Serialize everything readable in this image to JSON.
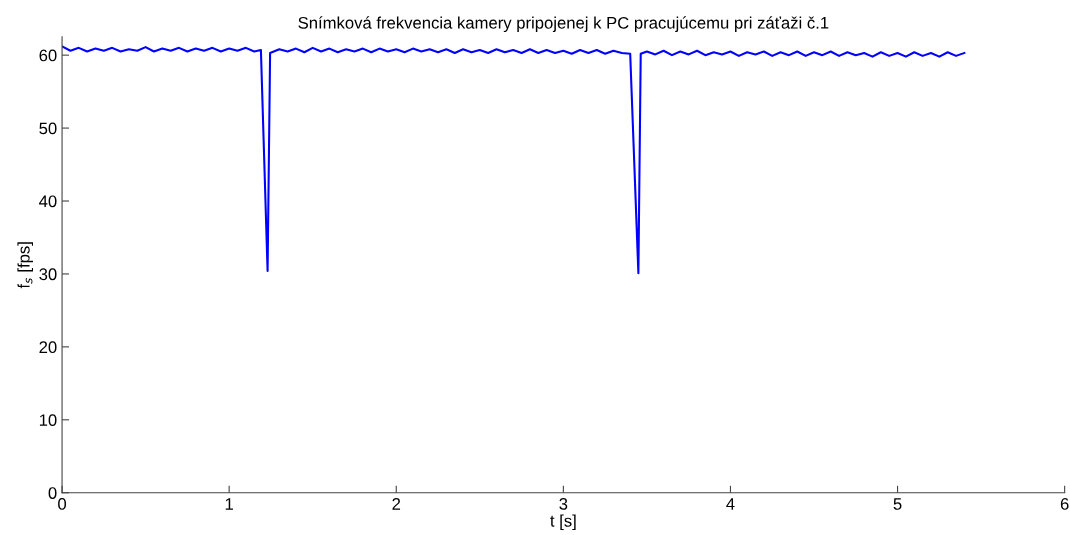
{
  "chart_data": {
    "type": "line",
    "title": "Snímková frekvencia kamery pripojenej k PC pracujúcemu pri záťaži č.1",
    "xlabel": "t [s]",
    "ylabel": "f$_{s}$ [fps]",
    "xlim": [
      0,
      6
    ],
    "xticks": [
      0,
      1,
      2,
      3,
      4,
      5,
      6
    ],
    "ylim": [
      0,
      62.5
    ],
    "yticks": [
      0,
      10,
      20,
      30,
      40,
      50,
      60
    ],
    "grid": false,
    "legend": false,
    "marker": "none",
    "line_style": "solid",
    "series": [
      {
        "color": "#0000ff",
        "x": [
          0,
          0.05,
          0.1,
          0.15,
          0.2,
          0.25,
          0.3,
          0.35,
          0.4,
          0.45,
          0.5,
          0.55,
          0.6,
          0.65,
          0.7,
          0.75,
          0.8,
          0.85,
          0.9,
          0.95,
          1.0,
          1.05,
          1.1,
          1.15,
          1.19,
          1.23,
          1.245,
          1.3,
          1.35,
          1.4,
          1.45,
          1.5,
          1.55,
          1.6,
          1.65,
          1.7,
          1.75,
          1.8,
          1.85,
          1.9,
          1.95,
          2.0,
          2.05,
          2.1,
          2.15,
          2.2,
          2.25,
          2.3,
          2.35,
          2.4,
          2.45,
          2.5,
          2.55,
          2.6,
          2.65,
          2.7,
          2.75,
          2.8,
          2.85,
          2.9,
          2.95,
          3.0,
          3.05,
          3.1,
          3.15,
          3.2,
          3.25,
          3.3,
          3.35,
          3.4,
          3.449,
          3.463,
          3.5,
          3.55,
          3.6,
          3.65,
          3.7,
          3.75,
          3.8,
          3.85,
          3.9,
          3.95,
          4.0,
          4.05,
          4.1,
          4.15,
          4.2,
          4.25,
          4.3,
          4.35,
          4.4,
          4.45,
          4.5,
          4.55,
          4.6,
          4.65,
          4.7,
          4.75,
          4.8,
          4.85,
          4.9,
          4.95,
          5.0,
          5.05,
          5.1,
          5.15,
          5.2,
          5.25,
          5.3,
          5.35,
          5.4
        ],
        "values": [
          61.2,
          60.6,
          61.0,
          60.5,
          60.9,
          60.6,
          61.0,
          60.5,
          60.8,
          60.6,
          61.1,
          60.5,
          60.9,
          60.6,
          61.0,
          60.5,
          60.9,
          60.6,
          61.0,
          60.5,
          60.9,
          60.6,
          61.0,
          60.5,
          60.7,
          30.4,
          60.3,
          60.8,
          60.5,
          60.9,
          60.4,
          61.0,
          60.5,
          60.9,
          60.4,
          60.8,
          60.5,
          60.9,
          60.4,
          60.9,
          60.5,
          60.8,
          60.4,
          60.9,
          60.5,
          60.8,
          60.4,
          60.8,
          60.3,
          60.8,
          60.4,
          60.7,
          60.3,
          60.8,
          60.4,
          60.7,
          60.3,
          60.8,
          60.3,
          60.7,
          60.3,
          60.6,
          60.2,
          60.7,
          60.3,
          60.7,
          60.2,
          60.6,
          60.3,
          60.2,
          30.1,
          60.2,
          60.5,
          60.1,
          60.6,
          60.0,
          60.5,
          60.1,
          60.6,
          60.0,
          60.4,
          60.1,
          60.5,
          59.9,
          60.4,
          60.1,
          60.5,
          59.9,
          60.4,
          60.0,
          60.5,
          59.9,
          60.4,
          60.0,
          60.5,
          59.9,
          60.4,
          60.0,
          60.3,
          59.8,
          60.4,
          59.9,
          60.3,
          59.8,
          60.4,
          59.9,
          60.3,
          59.8,
          60.4,
          59.9,
          60.3
        ]
      }
    ]
  }
}
